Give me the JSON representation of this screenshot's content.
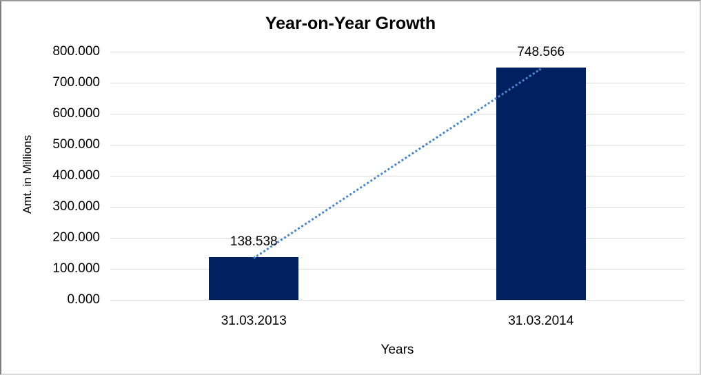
{
  "chart_data": {
    "type": "bar",
    "title": "Year-on-Year Growth",
    "xlabel": "Years",
    "ylabel": "Amt. in Millions",
    "categories": [
      "31.03.2013",
      "31.03.2014"
    ],
    "values": [
      138.538,
      748.566
    ],
    "data_labels": [
      "138.538",
      "748.566"
    ],
    "ylim": [
      0,
      800
    ],
    "ytick_step": 100,
    "ytick_labels": [
      "0.000",
      "100.000",
      "200.000",
      "300.000",
      "400.000",
      "500.000",
      "600.000",
      "700.000",
      "800.000"
    ],
    "grid": true,
    "legend_position": "none",
    "bar_color": "#002060",
    "gridline_color": "#d9d9d9",
    "text_color": "#000000",
    "trendline": {
      "style": "dotted",
      "color": "#4a86c8",
      "from_value": 138.538,
      "to_value": 748.566
    }
  }
}
